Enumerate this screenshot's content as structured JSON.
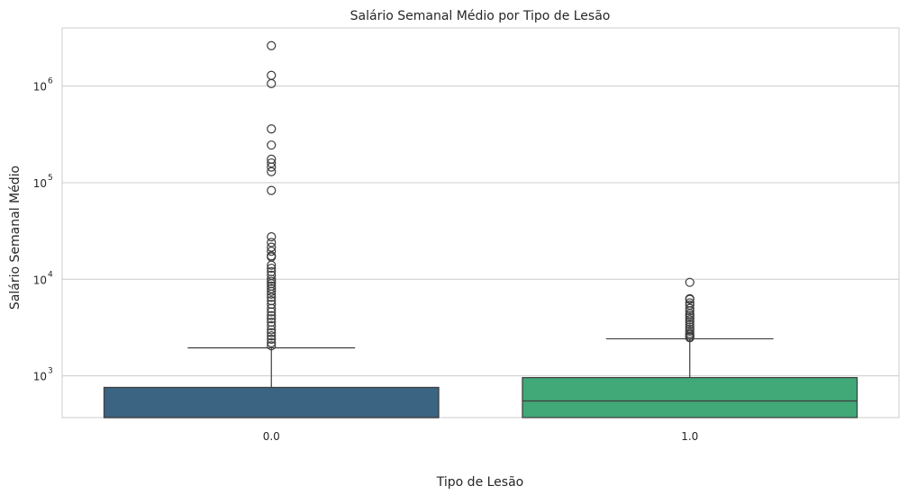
{
  "chart_data": {
    "type": "box",
    "title": "Salário Semanal Médio por Tipo de Lesão",
    "xlabel": "Tipo de Lesão",
    "ylabel": "Salário Semanal Médio",
    "yscale": "log",
    "ylim": [
      370,
      4000000
    ],
    "grid": "horizontal",
    "categories": [
      "0.0",
      "1.0"
    ],
    "y_tick_labels": [
      {
        "value": 1000,
        "base": "10",
        "exp": "3"
      },
      {
        "value": 10000,
        "base": "10",
        "exp": "4"
      },
      {
        "value": 100000,
        "base": "10",
        "exp": "5"
      },
      {
        "value": 1000000,
        "base": "10",
        "exp": "6"
      }
    ],
    "boxes": [
      {
        "category": "0.0",
        "color": "#3b6482",
        "q1": 370,
        "median": 370,
        "q3": 760,
        "whisker_low": 370,
        "whisker_high": 1950,
        "outliers": [
          2620000,
          1290000,
          1060000,
          360000,
          245000,
          175000,
          160000,
          145000,
          130000,
          83000,
          27500,
          24000,
          21500,
          19500,
          17500,
          17000,
          14000,
          13000,
          12000,
          11000,
          10000,
          9500,
          9000,
          8500,
          8000,
          7500,
          7000,
          6500,
          6000,
          5500,
          5000,
          4600,
          4200,
          3900,
          3600,
          3300,
          3000,
          2800,
          2600,
          2400,
          2200,
          2050
        ]
      },
      {
        "category": "1.0",
        "color": "#41a877",
        "q1": 370,
        "median": 550,
        "q3": 960,
        "whisker_low": 370,
        "whisker_high": 2420,
        "outliers": [
          9300,
          6300,
          6200,
          5700,
          5400,
          5000,
          4700,
          4400,
          4200,
          4000,
          3800,
          3600,
          3400,
          3200,
          3050,
          2900,
          2750,
          2650,
          2550,
          2480
        ]
      }
    ]
  }
}
